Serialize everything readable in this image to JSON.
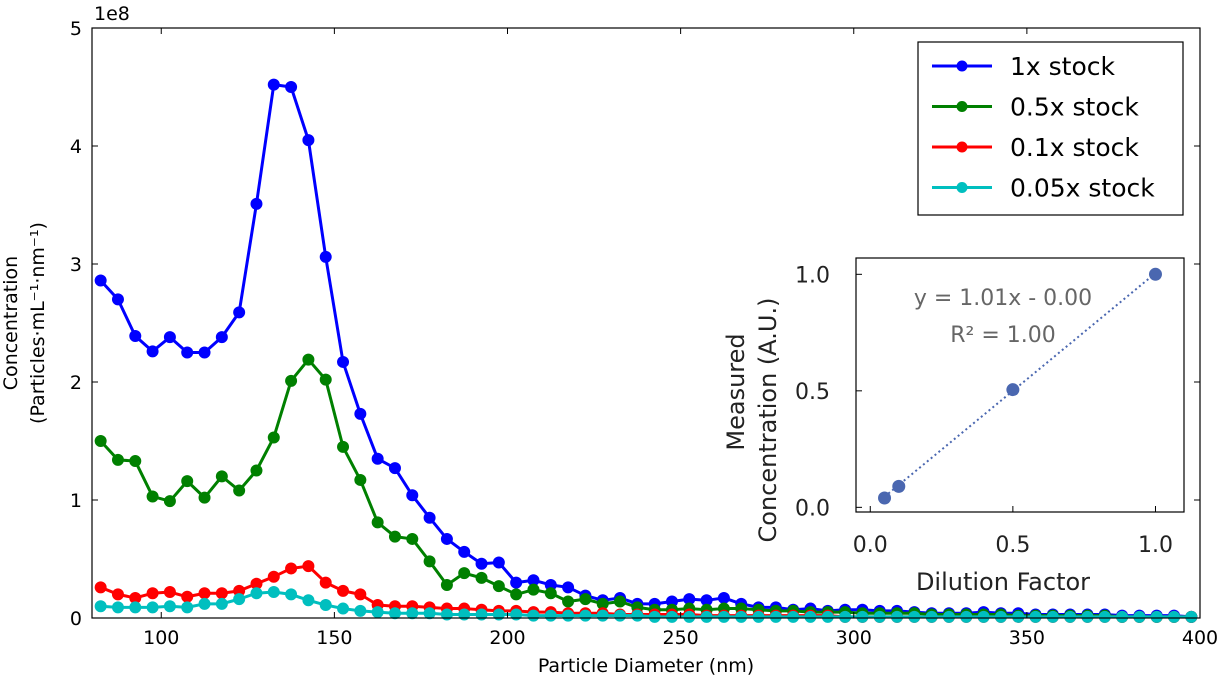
{
  "chart_data": [
    {
      "type": "line",
      "title": "",
      "xlabel": "Particle Diameter (nm)",
      "ylabel_line1": "Concentration",
      "ylabel_line2": "(Particles·mL⁻¹·nm⁻¹)",
      "y_scale_label": "1e8",
      "xlim": [
        80,
        400
      ],
      "ylim": [
        0,
        5
      ],
      "xticks": [
        100,
        150,
        200,
        250,
        300,
        350,
        400
      ],
      "yticks": [
        0,
        1,
        2,
        3,
        4,
        5
      ],
      "grid": false,
      "legend_position": "top-right",
      "x": [
        82.5,
        87.5,
        92.5,
        97.5,
        102.5,
        107.5,
        112.5,
        117.5,
        122.5,
        127.5,
        132.5,
        137.5,
        142.5,
        147.5,
        152.5,
        157.5,
        162.5,
        167.5,
        172.5,
        177.5,
        182.5,
        187.5,
        192.5,
        197.5,
        202.5,
        207.5,
        212.5,
        217.5,
        222.5,
        227.5,
        232.5,
        237.5,
        242.5,
        247.5,
        252.5,
        257.5,
        262.5,
        267.5,
        272.5,
        277.5,
        282.5,
        287.5,
        292.5,
        297.5,
        302.5,
        307.5,
        312.5,
        317.5,
        322.5,
        327.5,
        332.5,
        337.5,
        342.5,
        347.5,
        352.5,
        357.5,
        362.5,
        367.5,
        372.5,
        377.5,
        382.5,
        387.5,
        392.5,
        397.5
      ],
      "series": [
        {
          "name": "1x stock",
          "color": "#0000ff",
          "values": [
            2.86,
            2.7,
            2.39,
            2.26,
            2.38,
            2.25,
            2.25,
            2.38,
            2.59,
            3.51,
            4.52,
            4.5,
            4.05,
            3.06,
            2.17,
            1.73,
            1.35,
            1.27,
            1.04,
            0.85,
            0.67,
            0.56,
            0.46,
            0.47,
            0.3,
            0.32,
            0.28,
            0.26,
            0.19,
            0.15,
            0.17,
            0.12,
            0.12,
            0.14,
            0.16,
            0.15,
            0.17,
            0.12,
            0.09,
            0.09,
            0.07,
            0.08,
            0.06,
            0.07,
            0.07,
            0.06,
            0.06,
            0.05,
            0.04,
            0.04,
            0.04,
            0.05,
            0.04,
            0.04,
            0.03,
            0.03,
            0.03,
            0.03,
            0.03,
            0.02,
            0.02,
            0.02,
            0.02,
            0.01
          ]
        },
        {
          "name": "0.5x stock",
          "color": "#008000",
          "values": [
            1.5,
            1.34,
            1.33,
            1.03,
            0.99,
            1.16,
            1.02,
            1.2,
            1.08,
            1.25,
            1.53,
            2.01,
            2.19,
            2.02,
            1.45,
            1.17,
            0.81,
            0.69,
            0.67,
            0.48,
            0.28,
            0.38,
            0.34,
            0.27,
            0.2,
            0.24,
            0.21,
            0.14,
            0.16,
            0.12,
            0.14,
            0.09,
            0.07,
            0.07,
            0.08,
            0.07,
            0.08,
            0.08,
            0.07,
            0.06,
            0.06,
            0.05,
            0.05,
            0.05,
            0.04,
            0.04,
            0.04,
            0.04,
            0.03,
            0.03,
            0.03,
            0.03,
            0.03,
            0.02,
            0.02,
            0.02,
            0.02,
            0.02,
            0.02,
            0.01,
            0.01,
            0.01,
            0.01,
            0.01
          ]
        },
        {
          "name": "0.1x stock",
          "color": "#ff0000",
          "values": [
            0.26,
            0.2,
            0.17,
            0.21,
            0.22,
            0.18,
            0.21,
            0.21,
            0.23,
            0.29,
            0.35,
            0.42,
            0.44,
            0.3,
            0.23,
            0.2,
            0.11,
            0.1,
            0.1,
            0.09,
            0.08,
            0.08,
            0.07,
            0.06,
            0.06,
            0.05,
            0.05,
            0.04,
            0.04,
            0.04,
            0.03,
            0.03,
            0.03,
            0.03,
            0.03,
            0.02,
            0.02,
            0.02,
            0.02,
            0.02,
            0.02,
            0.02,
            0.02,
            0.01,
            0.01,
            0.01,
            0.01,
            0.01,
            0.01,
            0.01,
            0.01,
            0.01,
            0.01,
            0.01,
            0.01,
            0.01,
            0.01,
            0.01,
            0.01,
            0.01,
            0.01,
            0.01,
            0.01,
            0.01
          ]
        },
        {
          "name": "0.05x stock",
          "color": "#00bfbf",
          "values": [
            0.1,
            0.09,
            0.09,
            0.09,
            0.1,
            0.09,
            0.12,
            0.12,
            0.16,
            0.21,
            0.22,
            0.2,
            0.15,
            0.11,
            0.08,
            0.06,
            0.05,
            0.04,
            0.04,
            0.04,
            0.03,
            0.03,
            0.03,
            0.03,
            0.03,
            0.02,
            0.02,
            0.02,
            0.02,
            0.02,
            0.02,
            0.02,
            0.01,
            0.01,
            0.01,
            0.01,
            0.01,
            0.01,
            0.01,
            0.01,
            0.01,
            0.01,
            0.01,
            0.01,
            0.01,
            0.01,
            0.01,
            0.01,
            0.01,
            0.01,
            0.01,
            0.01,
            0.01,
            0.01,
            0.01,
            0.01,
            0.01,
            0.01,
            0.01,
            0.01,
            0.01,
            0.01,
            0.01,
            0.01
          ]
        }
      ]
    },
    {
      "type": "scatter",
      "title": "",
      "xlabel": "Dilution Factor",
      "ylabel_line1": "Measured",
      "ylabel_line2": "Concentration (A.U.)",
      "xlim": [
        -0.05,
        1.1
      ],
      "ylim": [
        -0.02,
        1.07
      ],
      "xticks": [
        0.0,
        0.5,
        1.0
      ],
      "xtick_labels": [
        "0.0",
        "0.5",
        "1.0"
      ],
      "yticks": [
        0.0,
        0.5,
        1.0
      ],
      "ytick_labels": [
        "0.0",
        "0.5",
        "1.0"
      ],
      "grid": false,
      "equation": "y = 1.01x - 0.00",
      "r_squared": "R² = 1.00",
      "point_color": "#4a67b0",
      "fit_color": "#4a67b0",
      "x": [
        0.05,
        0.1,
        0.5,
        1.0
      ],
      "y": [
        0.04,
        0.09,
        0.505,
        1.0
      ],
      "fit": {
        "slope": 1.01,
        "intercept": -0.005
      }
    }
  ]
}
